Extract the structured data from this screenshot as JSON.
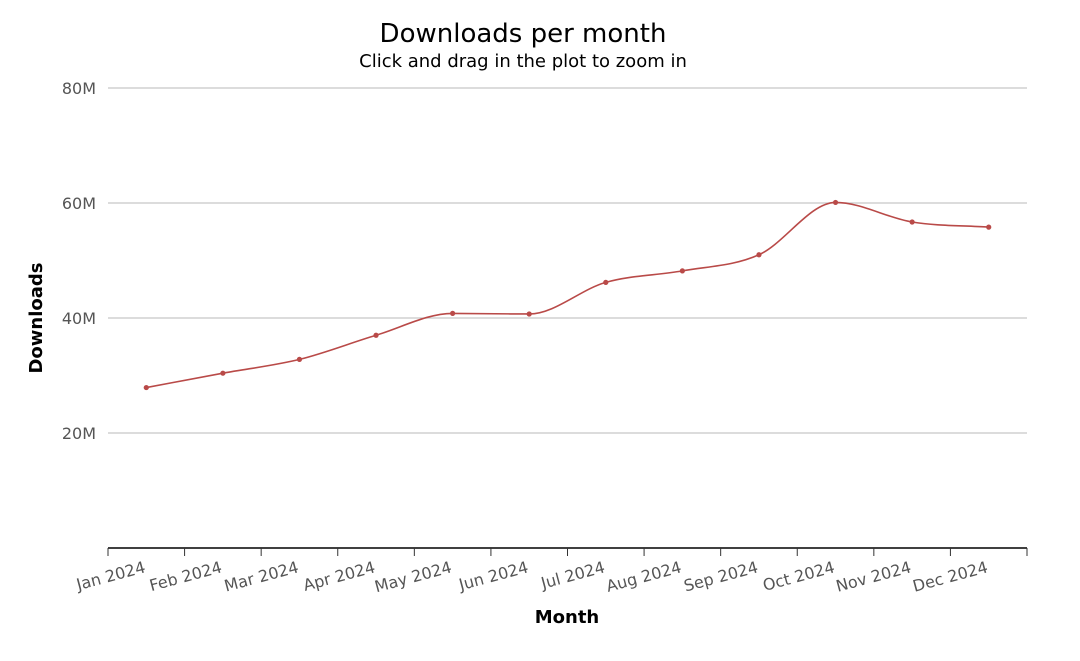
{
  "chart_data": {
    "type": "line",
    "title": "Downloads per month",
    "subtitle": "Click and drag in the plot to zoom in",
    "xlabel": "Month",
    "ylabel": "Downloads",
    "categories": [
      "Jan 2024",
      "Feb 2024",
      "Mar 2024",
      "Apr 2024",
      "May 2024",
      "Jun 2024",
      "Jul 2024",
      "Aug 2024",
      "Sep 2024",
      "Oct 2024",
      "Nov 2024",
      "Dec 2024"
    ],
    "yticks": [
      {
        "value": 20000000,
        "label": "20M"
      },
      {
        "value": 40000000,
        "label": "40M"
      },
      {
        "value": 60000000,
        "label": "60M"
      },
      {
        "value": 80000000,
        "label": "80M"
      }
    ],
    "ylim": [
      0,
      80000000
    ],
    "grid": true,
    "legend": "none",
    "series": [
      {
        "color": "#b94a48",
        "values": [
          27900000,
          30400000,
          32800000,
          37000000,
          40800000,
          40700000,
          46200000,
          48200000,
          51000000,
          60100000,
          56700000,
          55800000
        ]
      }
    ]
  }
}
